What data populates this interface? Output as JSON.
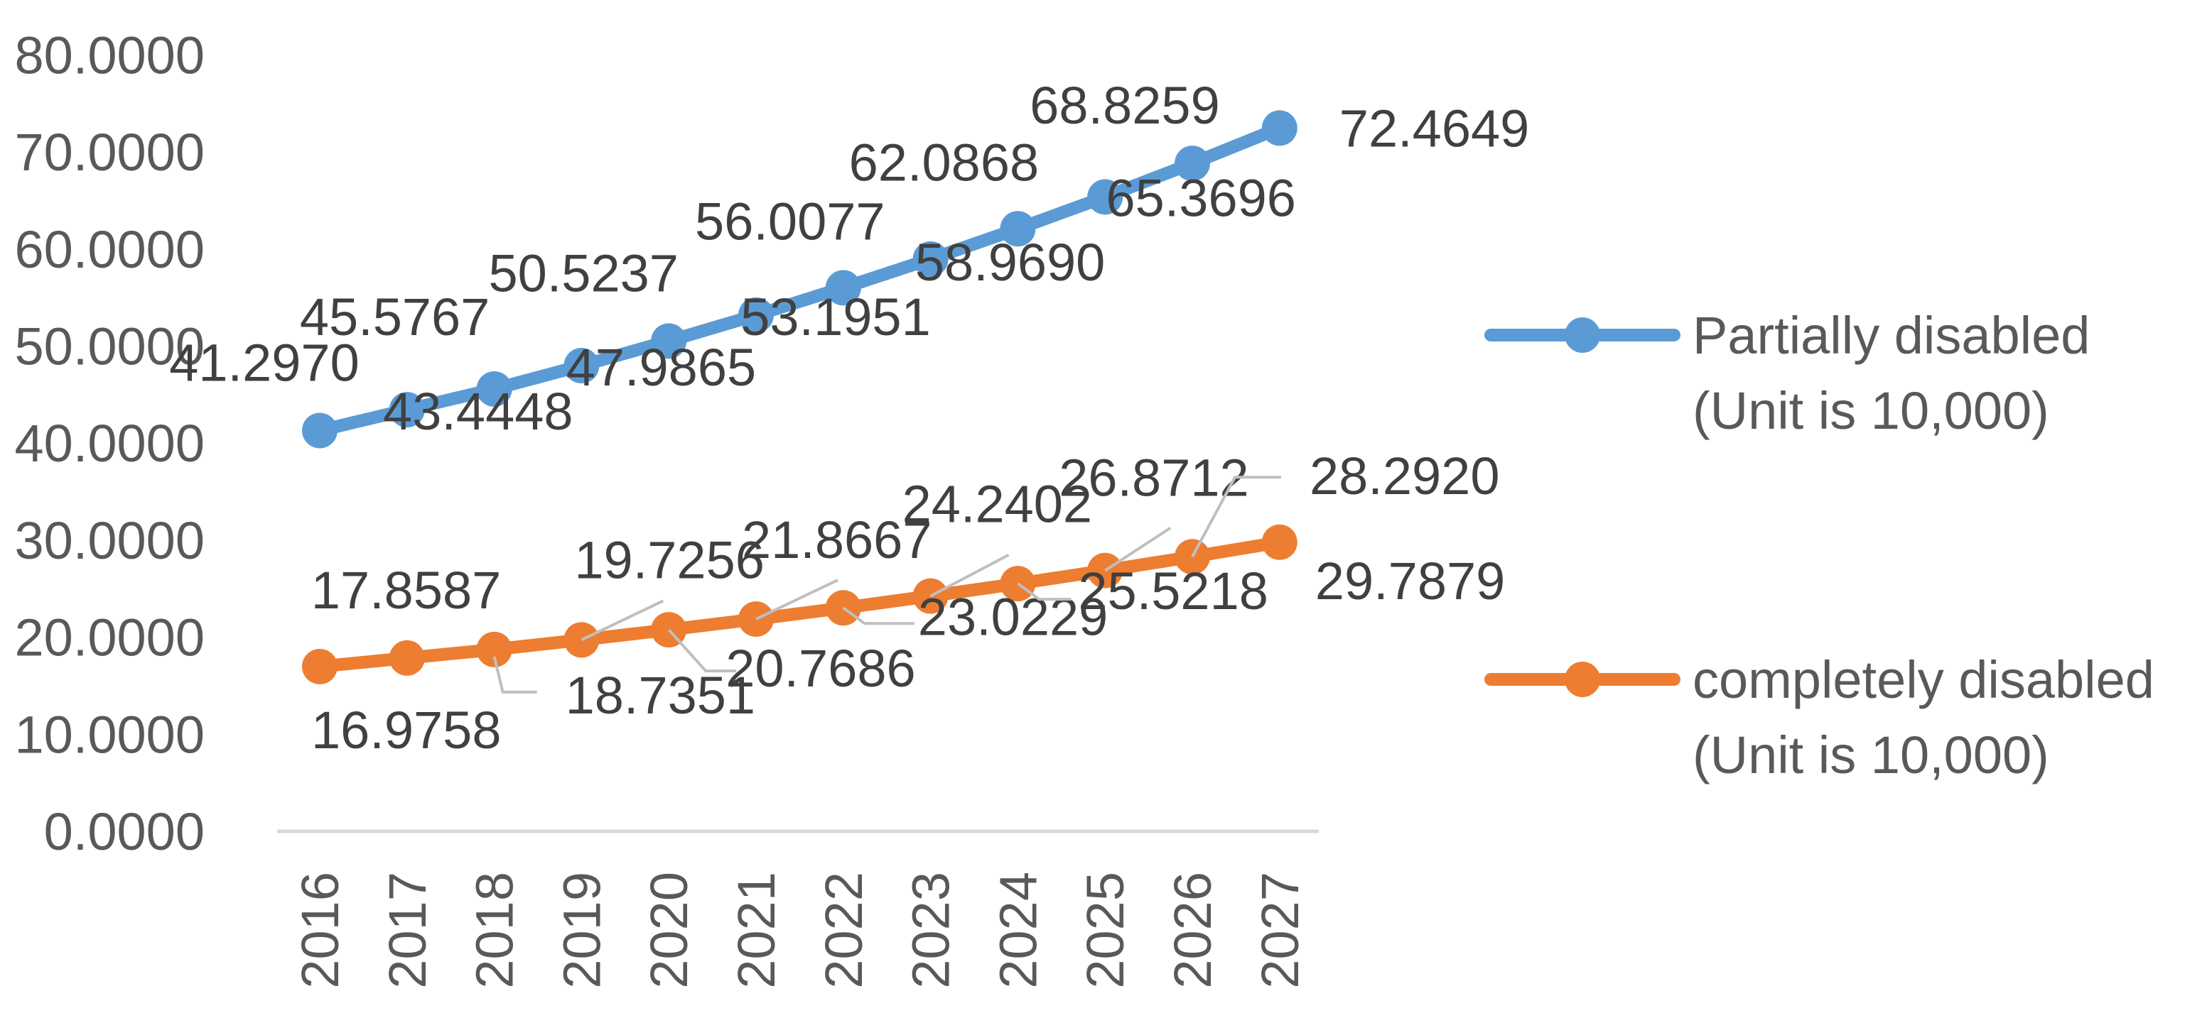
{
  "chart_data": {
    "type": "line",
    "title": "",
    "xlabel": "",
    "ylabel": "",
    "categories": [
      "2016",
      "2017",
      "2018",
      "2019",
      "2020",
      "2021",
      "2022",
      "2023",
      "2024",
      "2025",
      "2026",
      "2027"
    ],
    "ylim": [
      0,
      80
    ],
    "yticks": [
      "0.0000",
      "10.0000",
      "20.0000",
      "30.0000",
      "40.0000",
      "50.0000",
      "60.0000",
      "70.0000",
      "80.0000"
    ],
    "grid": false,
    "legend_position": "right",
    "series": [
      {
        "name": "Partially disabled (Unit is 10,000)",
        "name_lines": [
          "Partially disabled",
          "(Unit is 10,000)"
        ],
        "color": "#5b9bd5",
        "values": [
          41.297,
          43.4448,
          45.5767,
          47.9865,
          50.5237,
          53.1951,
          56.0077,
          58.969,
          62.0868,
          65.3696,
          68.8259,
          72.4649
        ],
        "labels": [
          "41.2970",
          "43.4448",
          "45.5767",
          "47.9865",
          "50.5237",
          "53.1951",
          "56.0077",
          "58.9690",
          "62.0868",
          "65.3696",
          "68.8259",
          "72.4649"
        ]
      },
      {
        "name": "completely disabled (Unit is 10,000)",
        "name_lines": [
          "completely disabled",
          "(Unit is 10,000)"
        ],
        "color": "#ed7d31",
        "values": [
          16.9758,
          17.8587,
          18.7351,
          19.7256,
          20.7686,
          21.8667,
          23.0229,
          24.2402,
          25.5218,
          26.8712,
          28.292,
          29.7879
        ],
        "labels": [
          "16.9758",
          "17.8587",
          "18.7351",
          "19.7256",
          "20.7686",
          "21.8667",
          "23.0229",
          "24.2402",
          "25.5218",
          "26.8712",
          "28.2920",
          "29.7879"
        ]
      }
    ]
  }
}
